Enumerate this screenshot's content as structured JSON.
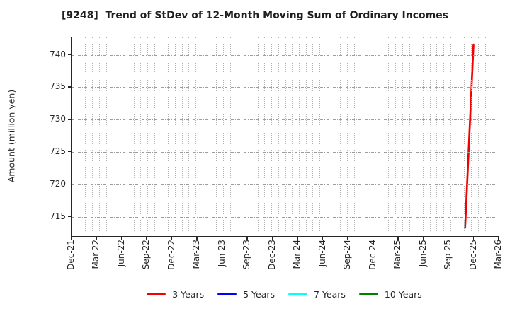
{
  "chart_data": {
    "type": "line",
    "title": "[9248]  Trend of StDev of 12-Month Moving Sum of Ordinary Incomes",
    "ylabel": "Amount (million yen)",
    "x_tick_labels": [
      "Dec-21",
      "Mar-22",
      "Jun-22",
      "Sep-22",
      "Dec-22",
      "Mar-23",
      "Jun-23",
      "Sep-23",
      "Dec-23",
      "Mar-24",
      "Jun-24",
      "Sep-24",
      "Dec-24",
      "Mar-25",
      "Jun-25",
      "Sep-25",
      "Dec-25",
      "Mar-26"
    ],
    "x_range": {
      "start": "Dec-21",
      "end": "Mar-26",
      "total_month_intervals": 51
    },
    "yticks": [
      715,
      720,
      725,
      730,
      735,
      740
    ],
    "ylim": [
      712.0,
      742.7
    ],
    "grid": {
      "horizontal_style": "dashed",
      "vertical_style": "dotted",
      "vertical_divisions": 62
    },
    "series": [
      {
        "name": "3 Years",
        "color": "#f40000",
        "points": [
          [
            "Nov-25",
            713.3
          ],
          [
            "Dec-25",
            741.6
          ]
        ]
      },
      {
        "name": "5 Years",
        "color": "#0000ff",
        "points": []
      },
      {
        "name": "7 Years",
        "color": "#00ffff",
        "points": []
      },
      {
        "name": "10 Years",
        "color": "#007f00",
        "points": []
      }
    ],
    "legend": {
      "position": "bottom-center",
      "entries": [
        "3 Years",
        "5 Years",
        "7 Years",
        "10 Years"
      ]
    }
  }
}
